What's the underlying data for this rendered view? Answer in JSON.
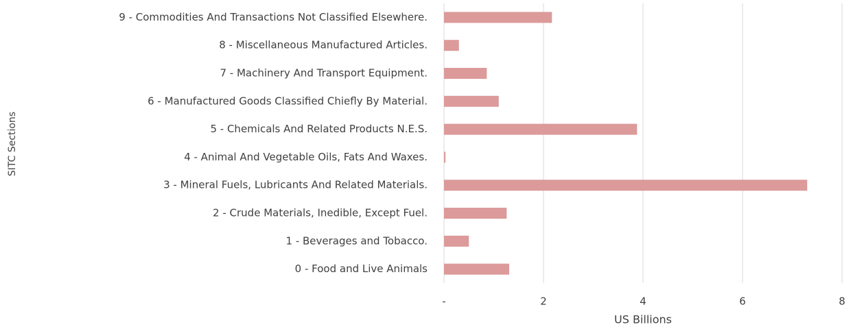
{
  "chart_data": {
    "type": "bar",
    "orientation": "horizontal",
    "categories": [
      "0 - Food and Live Animals",
      "1 - Beverages and Tobacco.",
      "2 - Crude Materials, Inedible, Except Fuel.",
      "3 - Mineral Fuels, Lubricants And Related Materials.",
      "4 - Animal And Vegetable Oils, Fats And Waxes.",
      "5 - Chemicals And Related Products N.E.S.",
      "6 - Manufactured Goods Classified Chiefly By Material.",
      "7 - Machinery And Transport Equipment.",
      "8 - Miscellaneous Manufactured Articles.",
      "9 - Commodities And Transactions Not Classified Elsewhere."
    ],
    "values": [
      1.31,
      0.5,
      1.26,
      7.3,
      0.03,
      3.88,
      1.1,
      0.86,
      0.3,
      2.17
    ],
    "color": "#dc9a9a",
    "xlabel": "US Billions",
    "ylabel": "SITC Sections",
    "xlim": [
      0,
      8
    ],
    "xticks": [
      {
        "value": 0,
        "label": "-"
      },
      2,
      4,
      6,
      8
    ],
    "grid": true
  }
}
